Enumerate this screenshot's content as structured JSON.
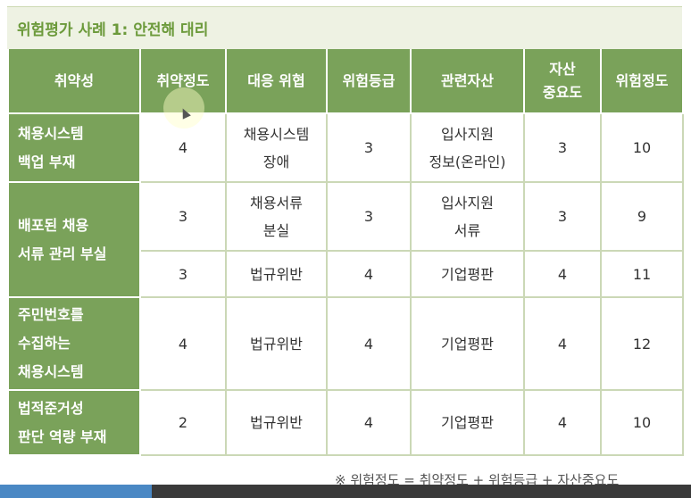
{
  "title": "위험평가 사례 1: 안전해 대리",
  "headers": [
    [
      "취약성"
    ],
    [
      "취약정도"
    ],
    [
      "대응 위협"
    ],
    [
      "위험등급"
    ],
    [
      "관련자산"
    ],
    [
      "자산",
      "중요도"
    ],
    [
      "위험정도"
    ]
  ],
  "groups": [
    {
      "vulnerability": [
        "채용시스템",
        "백업 부재"
      ],
      "rows": [
        {
          "degree": "4",
          "threat": [
            "채용시스템",
            "장애"
          ],
          "grade": "3",
          "asset": [
            "입사지원",
            "정보(온라인)"
          ],
          "importance": "3",
          "risk": "10"
        }
      ]
    },
    {
      "vulnerability": [
        "배포된 채용",
        "서류 관리 부실"
      ],
      "rows": [
        {
          "degree": "3",
          "threat": [
            "채용서류",
            "분실"
          ],
          "grade": "3",
          "asset": [
            "입사지원",
            "서류"
          ],
          "importance": "3",
          "risk": "9"
        },
        {
          "degree": "3",
          "threat": [
            "법규위반"
          ],
          "grade": "4",
          "asset": [
            "기업평판"
          ],
          "importance": "4",
          "risk": "11"
        }
      ]
    },
    {
      "vulnerability": [
        "주민번호를",
        "수집하는",
        "채용시스템"
      ],
      "rows": [
        {
          "degree": "4",
          "threat": [
            "법규위반"
          ],
          "grade": "4",
          "asset": [
            "기업평판"
          ],
          "importance": "4",
          "risk": "12"
        }
      ]
    },
    {
      "vulnerability": [
        "법적준거성",
        "판단 역량 부재"
      ],
      "rows": [
        {
          "degree": "2",
          "threat": [
            "법규위반"
          ],
          "grade": "4",
          "asset": [
            "기업평판"
          ],
          "importance": "4",
          "risk": "10"
        }
      ]
    }
  ],
  "footnote": "※ 위험정도 = 취약정도 + 위험등급 + 자산중요도",
  "progress": 0.22,
  "colors": {
    "header": "#7aa25a",
    "title_bg": "#eef2e3",
    "title_text": "#6c9a3b",
    "progress": "#4a88c4"
  }
}
